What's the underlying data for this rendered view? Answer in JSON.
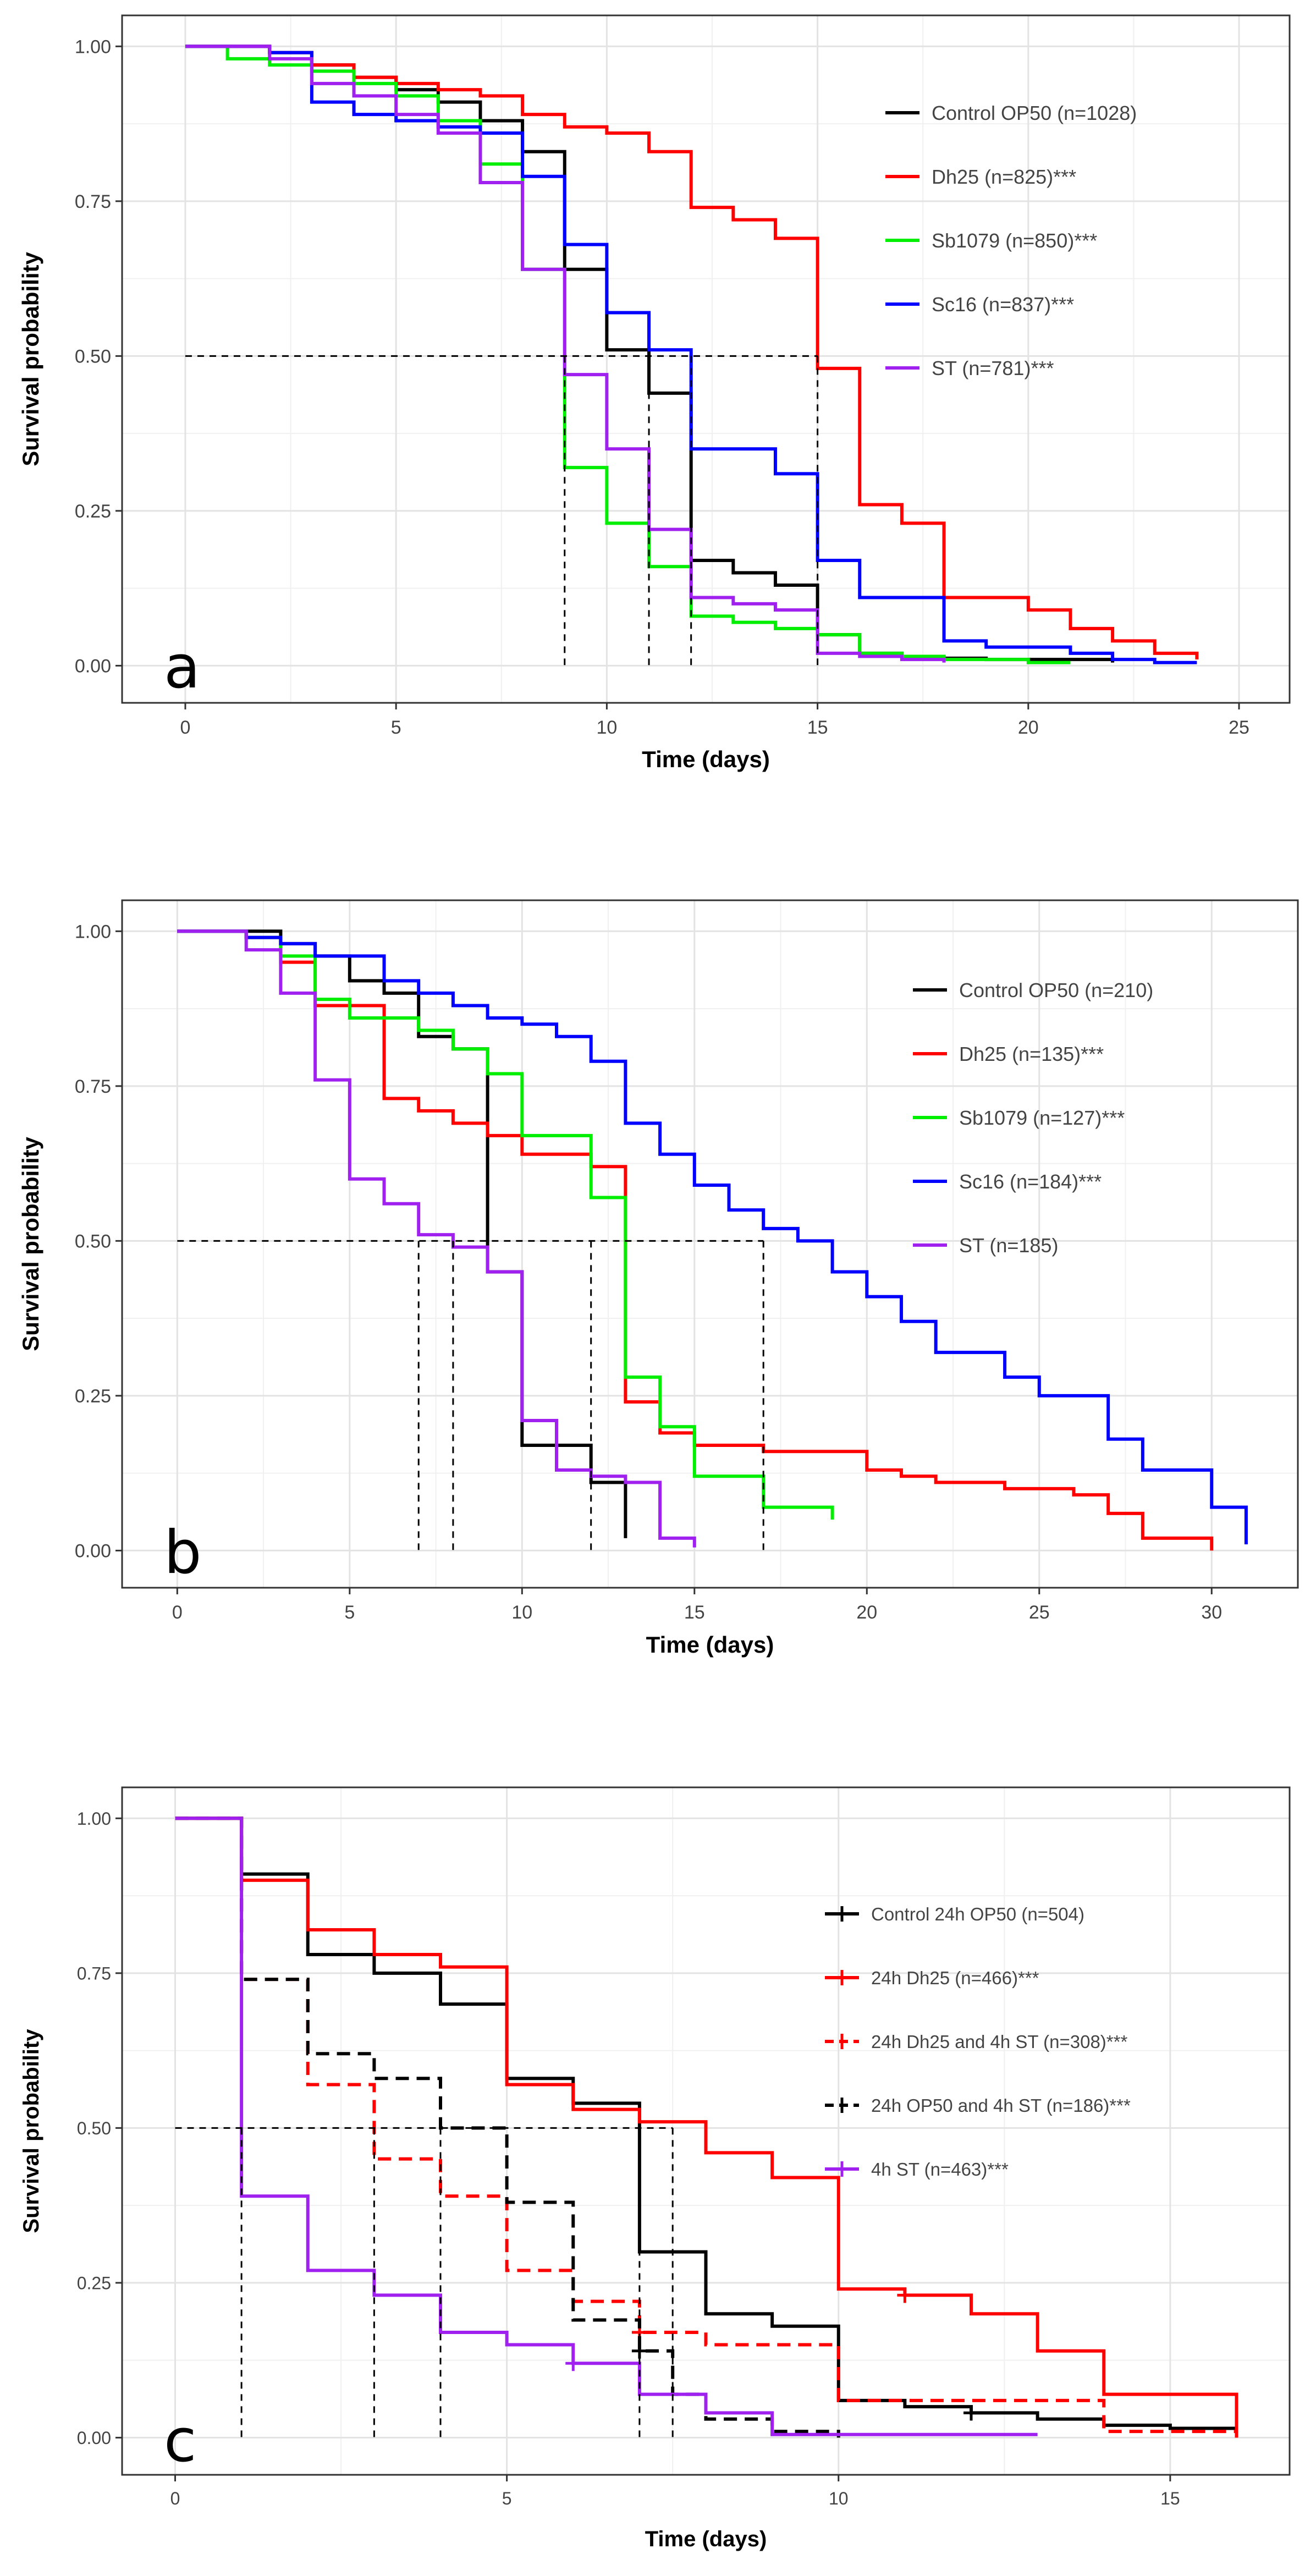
{
  "chart_data": [
    {
      "type": "line",
      "title": "",
      "panel_label": "a",
      "xlabel": "Time (days)",
      "ylabel": "Survival probability",
      "xlim": [
        -1.5,
        26.2
      ],
      "ylim": [
        -0.06,
        1.05
      ],
      "x_ticks": [
        0,
        5,
        10,
        15,
        20,
        25
      ],
      "y_ticks": [
        0.0,
        0.25,
        0.5,
        0.75,
        1.0
      ],
      "y_tick_labels": [
        "0.00",
        "0.25",
        "0.50",
        "0.75",
        "1.00"
      ],
      "grid": true,
      "legend_position": "top-right",
      "median_reference": {
        "y": 0.5,
        "x_medians": [
          9,
          11,
          12,
          15
        ]
      },
      "series": [
        {
          "name": "Control OP50 (n=1028)",
          "color": "#000000",
          "dashed": false,
          "censor_marks": false,
          "x": [
            0,
            2,
            3,
            4,
            5,
            6,
            7,
            8,
            9,
            10,
            11,
            12,
            13,
            14,
            15,
            16,
            17,
            18,
            19,
            20,
            21,
            22
          ],
          "y": [
            1.0,
            0.99,
            0.97,
            0.95,
            0.93,
            0.91,
            0.88,
            0.83,
            0.64,
            0.51,
            0.44,
            0.17,
            0.15,
            0.13,
            0.05,
            0.02,
            0.015,
            0.012,
            0.01,
            0.01,
            0.01,
            0.005
          ]
        },
        {
          "name": "Dh25 (n=825)***",
          "color": "#ff0000",
          "dashed": false,
          "censor_marks": false,
          "x": [
            0,
            2,
            3,
            4,
            5,
            6,
            7,
            8,
            9,
            10,
            11,
            12,
            13,
            14,
            15,
            16,
            17,
            18,
            19,
            20,
            21,
            22,
            23,
            24
          ],
          "y": [
            1.0,
            0.99,
            0.97,
            0.95,
            0.94,
            0.93,
            0.92,
            0.89,
            0.87,
            0.86,
            0.83,
            0.74,
            0.72,
            0.69,
            0.48,
            0.26,
            0.23,
            0.11,
            0.11,
            0.09,
            0.06,
            0.04,
            0.02,
            0.01
          ]
        },
        {
          "name": "Sb1079 (n=850)***",
          "color": "#00ee00",
          "dashed": false,
          "censor_marks": false,
          "x": [
            0,
            1,
            2,
            3,
            4,
            5,
            6,
            7,
            8,
            9,
            10,
            11,
            12,
            13,
            14,
            15,
            16,
            17,
            18,
            19,
            20,
            21
          ],
          "y": [
            1.0,
            0.98,
            0.97,
            0.96,
            0.94,
            0.92,
            0.88,
            0.81,
            0.64,
            0.32,
            0.23,
            0.16,
            0.08,
            0.07,
            0.06,
            0.05,
            0.02,
            0.015,
            0.01,
            0.01,
            0.005,
            0.005
          ]
        },
        {
          "name": "Sc16 (n=837)***",
          "color": "#0000ff",
          "dashed": false,
          "censor_marks": false,
          "x": [
            0,
            2,
            3,
            4,
            5,
            6,
            7,
            8,
            9,
            10,
            11,
            12,
            14,
            15,
            16,
            18,
            19,
            21,
            22,
            23,
            24
          ],
          "y": [
            1.0,
            0.99,
            0.91,
            0.89,
            0.88,
            0.87,
            0.86,
            0.79,
            0.68,
            0.57,
            0.51,
            0.35,
            0.31,
            0.17,
            0.11,
            0.04,
            0.03,
            0.02,
            0.01,
            0.005,
            0.005
          ]
        },
        {
          "name": "ST (n=781)***",
          "color": "#a020f0",
          "dashed": false,
          "censor_marks": false,
          "x": [
            0,
            2,
            3,
            4,
            5,
            6,
            7,
            8,
            9,
            10,
            11,
            12,
            13,
            14,
            15,
            16,
            17,
            18
          ],
          "y": [
            1.0,
            0.98,
            0.94,
            0.92,
            0.89,
            0.86,
            0.78,
            0.64,
            0.47,
            0.35,
            0.22,
            0.11,
            0.1,
            0.09,
            0.02,
            0.015,
            0.01,
            0.005
          ]
        }
      ]
    },
    {
      "type": "line",
      "title": "",
      "panel_label": "b",
      "xlabel": "Time (days)",
      "ylabel": "Survival probability",
      "xlim": [
        -1.6,
        32.5
      ],
      "ylim": [
        -0.06,
        1.05
      ],
      "x_ticks": [
        0,
        5,
        10,
        15,
        20,
        25,
        30
      ],
      "y_ticks": [
        0.0,
        0.25,
        0.5,
        0.75,
        1.0
      ],
      "y_tick_labels": [
        "0.00",
        "0.25",
        "0.50",
        "0.75",
        "1.00"
      ],
      "grid": true,
      "legend_position": "top-right",
      "median_reference": {
        "y": 0.5,
        "x_medians": [
          7,
          8,
          12,
          17
        ]
      },
      "series": [
        {
          "name": "Control OP50 (n=210)",
          "color": "#000000",
          "dashed": false,
          "censor_marks": false,
          "x": [
            0,
            3,
            4,
            5,
            6,
            7,
            8,
            9,
            10,
            12,
            13
          ],
          "y": [
            1.0,
            0.98,
            0.96,
            0.92,
            0.9,
            0.83,
            0.81,
            0.45,
            0.17,
            0.11,
            0.02
          ]
        },
        {
          "name": "Dh25 (n=135)***",
          "color": "#ff0000",
          "dashed": false,
          "censor_marks": false,
          "x": [
            0,
            2,
            3,
            4,
            6,
            7,
            8,
            9,
            10,
            12,
            13,
            14,
            15,
            17,
            20,
            21,
            22,
            24,
            26,
            27,
            28,
            30
          ],
          "y": [
            1.0,
            0.99,
            0.95,
            0.88,
            0.73,
            0.71,
            0.69,
            0.67,
            0.64,
            0.62,
            0.24,
            0.19,
            0.17,
            0.16,
            0.13,
            0.12,
            0.11,
            0.1,
            0.09,
            0.06,
            0.02,
            0.0
          ]
        },
        {
          "name": "Sb1079 (n=127)***",
          "color": "#00ee00",
          "dashed": false,
          "censor_marks": false,
          "x": [
            0,
            2,
            3,
            4,
            5,
            7,
            8,
            9,
            10,
            12,
            13,
            14,
            15,
            17,
            19
          ],
          "y": [
            1.0,
            0.99,
            0.96,
            0.89,
            0.86,
            0.84,
            0.81,
            0.77,
            0.67,
            0.57,
            0.28,
            0.2,
            0.12,
            0.07,
            0.05
          ]
        },
        {
          "name": "Sc16 (n=184)***",
          "color": "#0000ff",
          "dashed": false,
          "censor_marks": false,
          "x": [
            0,
            2,
            3,
            4,
            6,
            7,
            8,
            9,
            10,
            11,
            12,
            13,
            14,
            15,
            16,
            17,
            18,
            19,
            20,
            21,
            22,
            24,
            25,
            27,
            28,
            30,
            31
          ],
          "y": [
            1.0,
            0.99,
            0.98,
            0.96,
            0.92,
            0.9,
            0.88,
            0.86,
            0.85,
            0.83,
            0.79,
            0.69,
            0.64,
            0.59,
            0.55,
            0.52,
            0.5,
            0.45,
            0.41,
            0.37,
            0.32,
            0.28,
            0.25,
            0.18,
            0.13,
            0.07,
            0.01
          ]
        },
        {
          "name": "ST (n=185)",
          "color": "#a020f0",
          "dashed": false,
          "censor_marks": false,
          "x": [
            0,
            2,
            3,
            4,
            5,
            6,
            7,
            8,
            9,
            10,
            11,
            12,
            13,
            14,
            15
          ],
          "y": [
            1.0,
            0.97,
            0.9,
            0.76,
            0.6,
            0.56,
            0.51,
            0.49,
            0.45,
            0.21,
            0.13,
            0.12,
            0.11,
            0.02,
            0.005
          ]
        }
      ]
    },
    {
      "type": "line",
      "title": "",
      "panel_label": "c",
      "xlabel": "Time (days)",
      "ylabel": "Survival probability",
      "xlim": [
        -0.8,
        16.8
      ],
      "ylim": [
        -0.06,
        1.05
      ],
      "x_ticks": [
        0,
        5,
        10,
        15
      ],
      "y_ticks": [
        0.0,
        0.25,
        0.5,
        0.75,
        1.0
      ],
      "y_tick_labels": [
        "0.00",
        "0.25",
        "0.50",
        "0.75",
        "1.00"
      ],
      "grid": true,
      "legend_position": "top-right",
      "median_reference": {
        "y": 0.5,
        "x_medians": [
          1,
          3,
          4,
          7,
          7.5
        ]
      },
      "series": [
        {
          "name": "Control 24h OP50 (n=504)",
          "color": "#000000",
          "dashed": false,
          "censor_marks": true,
          "x": [
            0,
            1,
            2,
            3,
            4,
            5,
            6,
            7,
            8,
            9,
            10,
            11,
            12,
            13,
            14,
            15,
            16
          ],
          "y": [
            1.0,
            0.91,
            0.78,
            0.75,
            0.7,
            0.58,
            0.54,
            0.3,
            0.2,
            0.18,
            0.06,
            0.05,
            0.04,
            0.03,
            0.02,
            0.015,
            0.01
          ]
        },
        {
          "name": "24h Dh25 (n=466)***",
          "color": "#ff0000",
          "dashed": false,
          "censor_marks": true,
          "x": [
            0,
            1,
            2,
            3,
            4,
            5,
            6,
            7,
            8,
            9,
            10,
            11,
            12,
            13,
            14,
            16
          ],
          "y": [
            1.0,
            0.9,
            0.82,
            0.78,
            0.76,
            0.57,
            0.53,
            0.51,
            0.46,
            0.42,
            0.24,
            0.23,
            0.2,
            0.14,
            0.07,
            0.0
          ]
        },
        {
          "name": "24h Dh25 and 4h ST (n=308)***",
          "color": "#ff0000",
          "dashed": true,
          "censor_marks": true,
          "x": [
            0,
            1,
            2,
            3,
            4,
            5,
            6,
            7,
            8,
            10,
            14,
            16
          ],
          "y": [
            1.0,
            0.74,
            0.57,
            0.45,
            0.39,
            0.27,
            0.22,
            0.17,
            0.15,
            0.06,
            0.01,
            0.0
          ]
        },
        {
          "name": "24h OP50 and 4h ST (n=186)***",
          "color": "#000000",
          "dashed": true,
          "censor_marks": true,
          "x": [
            0,
            1,
            2,
            3,
            4,
            5,
            6,
            7,
            7.5,
            8,
            9,
            10
          ],
          "y": [
            1.0,
            0.74,
            0.62,
            0.58,
            0.5,
            0.38,
            0.19,
            0.14,
            0.07,
            0.03,
            0.01,
            0.0
          ]
        },
        {
          "name": "4h ST (n=463)***",
          "color": "#a020f0",
          "dashed": false,
          "censor_marks": true,
          "x": [
            0,
            1,
            2,
            3,
            4,
            5,
            6,
            7,
            8,
            9,
            13
          ],
          "y": [
            1.0,
            0.39,
            0.27,
            0.23,
            0.17,
            0.15,
            0.12,
            0.07,
            0.04,
            0.005,
            0.005
          ]
        }
      ]
    }
  ]
}
